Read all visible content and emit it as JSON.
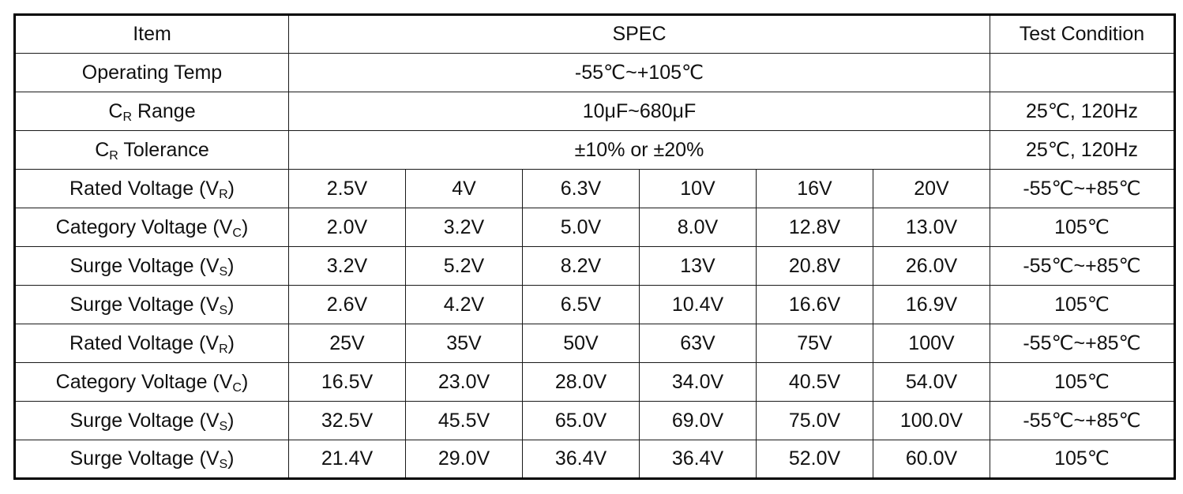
{
  "header": {
    "item": "Item",
    "spec": "SPEC",
    "test_condition": "Test Condition"
  },
  "general_rows": [
    {
      "label": "Operating Temp",
      "label_sub": "",
      "label_suffix": "",
      "spec": "-55℃~+105℃",
      "condition": ""
    },
    {
      "label": "C",
      "label_sub": "R",
      "label_suffix": " Range",
      "spec": "10μF~680μF",
      "condition": "25℃, 120Hz"
    },
    {
      "label": "C",
      "label_sub": "R",
      "label_suffix": " Tolerance",
      "spec": "±10% or ±20%",
      "condition": "25℃, 120Hz"
    }
  ],
  "voltage_rows": [
    {
      "label": "Rated Voltage (V",
      "sub": "R",
      "suffix": ")",
      "values": [
        "2.5V",
        "4V",
        "6.3V",
        "10V",
        "16V",
        "20V"
      ],
      "condition": "-55℃~+85℃"
    },
    {
      "label": "Category Voltage (V",
      "sub": "C",
      "suffix": ")",
      "values": [
        "2.0V",
        "3.2V",
        "5.0V",
        "8.0V",
        "12.8V",
        "13.0V"
      ],
      "condition": "105℃"
    },
    {
      "label": "Surge Voltage (V",
      "sub": "S",
      "suffix": ")",
      "values": [
        "3.2V",
        "5.2V",
        "8.2V",
        "13V",
        "20.8V",
        "26.0V"
      ],
      "condition": "-55℃~+85℃"
    },
    {
      "label": "Surge Voltage (V",
      "sub": "S",
      "suffix": ")",
      "values": [
        "2.6V",
        "4.2V",
        "6.5V",
        "10.4V",
        "16.6V",
        "16.9V"
      ],
      "condition": "105℃"
    },
    {
      "label": "Rated Voltage (V",
      "sub": "R",
      "suffix": ")",
      "values": [
        "25V",
        "35V",
        "50V",
        "63V",
        "75V",
        "100V"
      ],
      "condition": "-55℃~+85℃"
    },
    {
      "label": "Category Voltage (V",
      "sub": "C",
      "suffix": ")",
      "values": [
        "16.5V",
        "23.0V",
        "28.0V",
        "34.0V",
        "40.5V",
        "54.0V"
      ],
      "condition": "105℃"
    },
    {
      "label": "Surge Voltage (V",
      "sub": "S",
      "suffix": ")",
      "values": [
        "32.5V",
        "45.5V",
        "65.0V",
        "69.0V",
        "75.0V",
        "100.0V"
      ],
      "condition": "-55℃~+85℃"
    },
    {
      "label": "Surge Voltage (V",
      "sub": "S",
      "suffix": ")",
      "values": [
        "21.4V",
        "29.0V",
        "36.4V",
        "36.4V",
        "52.0V",
        "60.0V"
      ],
      "condition": "105℃"
    }
  ]
}
